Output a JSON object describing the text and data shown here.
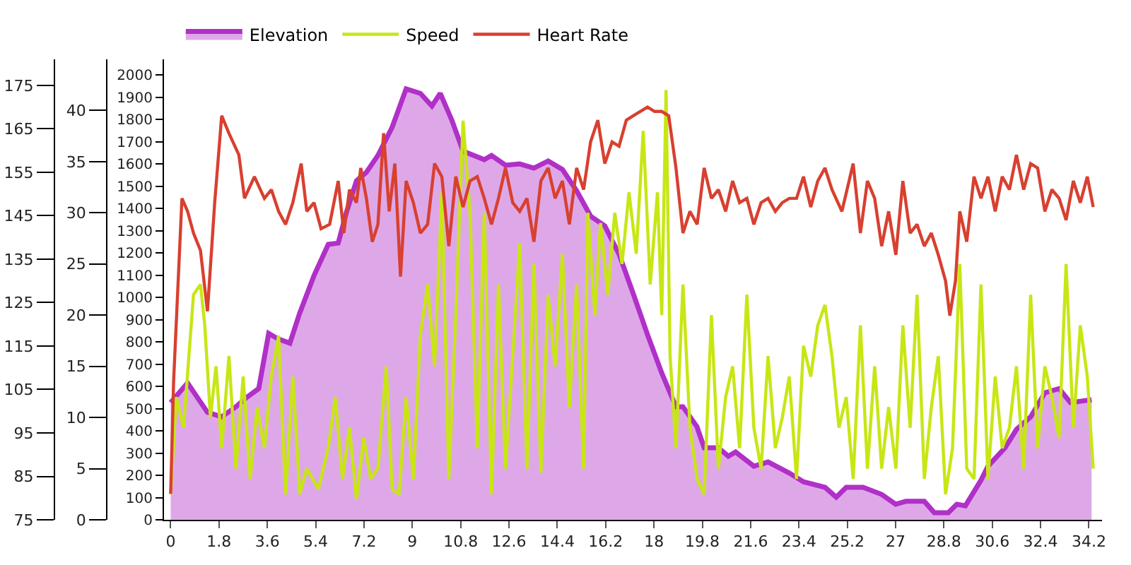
{
  "chart_data": {
    "type": "line",
    "legend": "top",
    "xlim": [
      -0.3,
      34.7
    ],
    "xticks": [
      0,
      1.8,
      3.6,
      5.4,
      7.2,
      9,
      10.8,
      12.6,
      14.4,
      16.2,
      18,
      19.8,
      21.6,
      23.4,
      25.2,
      27,
      28.8,
      30.6,
      32.4,
      34.2
    ],
    "ylim": [
      0,
      2070
    ],
    "yticks": [
      0,
      100,
      200,
      300,
      400,
      500,
      600,
      700,
      800,
      900,
      1000,
      1100,
      1200,
      1300,
      1400,
      1500,
      1600,
      1700,
      1800,
      1900,
      2000
    ],
    "y2lim": [
      0,
      45
    ],
    "y2ticks": [
      0,
      5,
      10,
      15,
      20,
      25,
      30,
      35,
      40
    ],
    "y3lim": [
      75,
      181
    ],
    "y3ticks": [
      75,
      85,
      95,
      105,
      115,
      125,
      135,
      145,
      155,
      165,
      175
    ],
    "series": [
      {
        "name": "Elevation",
        "type": "area",
        "color": "#b030c8",
        "x": [
          0,
          0.63,
          1.37,
          1.9,
          2.43,
          2.85,
          3.28,
          3.65,
          4.0,
          4.44,
          4.8,
          5.34,
          5.87,
          6.24,
          6.55,
          6.92,
          7.29,
          7.72,
          8.25,
          8.77,
          9.3,
          9.73,
          10.04,
          10.47,
          10.89,
          11.68,
          11.95,
          12.47,
          13.0,
          13.53,
          14.06,
          14.59,
          15.12,
          15.64,
          16.17,
          16.7,
          17.23,
          17.76,
          18.29,
          18.82,
          19.08,
          19.6,
          19.87,
          20.4,
          20.77,
          21.04,
          21.72,
          22.25,
          23.04,
          23.57,
          24.37,
          24.79,
          25.16,
          25.79,
          26.48,
          27.0,
          27.38,
          28.07,
          28.44,
          28.96,
          29.28,
          29.6,
          30.18,
          30.44,
          31.08,
          31.5,
          32.03,
          32.56,
          33.09,
          33.51,
          33.88,
          34.3
        ],
        "values": [
          527,
          615,
          483,
          463,
          508,
          552,
          590,
          838,
          813,
          794,
          927,
          1098,
          1238,
          1244,
          1384,
          1524,
          1562,
          1638,
          1765,
          1937,
          1917,
          1860,
          1917,
          1797,
          1657,
          1619,
          1638,
          1594,
          1600,
          1581,
          1613,
          1575,
          1479,
          1365,
          1321,
          1194,
          1016,
          832,
          660,
          508,
          508,
          419,
          324,
          324,
          286,
          305,
          241,
          260,
          210,
          171,
          146,
          102,
          146,
          146,
          114,
          70,
          83,
          83,
          32,
          32,
          70,
          63,
          178,
          241,
          324,
          406,
          463,
          571,
          590,
          527,
          533,
          540
        ]
      },
      {
        "name": "Speed",
        "color": "#c8e614",
        "axis": "y2",
        "x": [
          0,
          0.21,
          0.48,
          0.85,
          1.11,
          1.27,
          1.48,
          1.69,
          1.9,
          2.17,
          2.43,
          2.7,
          2.96,
          3.22,
          3.49,
          3.75,
          4.02,
          4.28,
          4.55,
          4.81,
          5.07,
          5.5,
          5.87,
          6.13,
          6.4,
          6.66,
          6.92,
          7.19,
          7.45,
          7.72,
          8.03,
          8.25,
          8.51,
          8.77,
          9.04,
          9.3,
          9.57,
          9.83,
          10.1,
          10.36,
          10.62,
          10.89,
          11.15,
          11.42,
          11.68,
          11.95,
          12.21,
          12.47,
          12.74,
          13.0,
          13.27,
          13.53,
          13.79,
          14.06,
          14.32,
          14.59,
          14.85,
          15.12,
          15.38,
          15.54,
          15.8,
          16.01,
          16.28,
          16.54,
          16.81,
          17.07,
          17.34,
          17.6,
          17.86,
          18.13,
          18.29,
          18.45,
          18.6,
          18.82,
          19.08,
          19.34,
          19.61,
          19.87,
          20.14,
          20.4,
          20.67,
          20.93,
          21.19,
          21.46,
          21.72,
          21.99,
          22.25,
          22.52,
          22.78,
          23.04,
          23.31,
          23.57,
          23.84,
          24.1,
          24.37,
          24.63,
          24.89,
          25.16,
          25.42,
          25.69,
          25.95,
          26.22,
          26.48,
          26.74,
          27.01,
          27.27,
          27.54,
          27.8,
          28.07,
          28.33,
          28.59,
          28.86,
          29.12,
          29.39,
          29.65,
          29.92,
          30.18,
          30.44,
          30.71,
          30.97,
          31.24,
          31.5,
          31.77,
          32.03,
          32.29,
          32.56,
          32.82,
          33.09,
          33.35,
          33.62,
          33.88,
          34.14,
          34.36
        ],
        "values": [
          2.5,
          12,
          9,
          22,
          23,
          19,
          10,
          15,
          7,
          16,
          5,
          14,
          4,
          11,
          7,
          14,
          18,
          2.5,
          14,
          2.5,
          5,
          3,
          7,
          12,
          4,
          9,
          2,
          8,
          4,
          5,
          15,
          3,
          2.5,
          12,
          4,
          18,
          23,
          15,
          32,
          4,
          20,
          39,
          30,
          7,
          30,
          2.5,
          23,
          5,
          16,
          27,
          5,
          25,
          4.6,
          22,
          15,
          26,
          11,
          23,
          5,
          30,
          20,
          29,
          22,
          30,
          25,
          32,
          26,
          38,
          23,
          32,
          20,
          42,
          16,
          7,
          23,
          9,
          4,
          2.5,
          20,
          5,
          12,
          15,
          7,
          22,
          9,
          5,
          16,
          7,
          10,
          14,
          4,
          17,
          14,
          19,
          21,
          16,
          9,
          12,
          4,
          19,
          5,
          15,
          5,
          11,
          5,
          19,
          9,
          22,
          4,
          11,
          16,
          2.5,
          7,
          25,
          5,
          4,
          23,
          4,
          14,
          7,
          9,
          15,
          5,
          22,
          7,
          15,
          12,
          8,
          25,
          9,
          19,
          14,
          5
        ]
      },
      {
        "name": "Heart Rate",
        "color": "#d84030",
        "axis": "y3",
        "x": [
          0,
          0.11,
          0.42,
          0.63,
          0.85,
          1.11,
          1.37,
          1.64,
          1.9,
          2.17,
          2.54,
          2.75,
          3.12,
          3.49,
          3.75,
          4.02,
          4.28,
          4.55,
          4.86,
          5.07,
          5.34,
          5.6,
          5.92,
          6.24,
          6.45,
          6.66,
          6.92,
          7.08,
          7.29,
          7.51,
          7.72,
          7.93,
          8.14,
          8.35,
          8.56,
          8.77,
          9.04,
          9.3,
          9.57,
          9.83,
          10.1,
          10.36,
          10.62,
          10.89,
          11.15,
          11.42,
          11.68,
          11.95,
          12.21,
          12.47,
          12.74,
          13.0,
          13.27,
          13.53,
          13.79,
          14.06,
          14.32,
          14.59,
          14.85,
          15.12,
          15.38,
          15.64,
          15.91,
          16.17,
          16.44,
          16.7,
          16.97,
          17.23,
          17.49,
          17.76,
          18.02,
          18.29,
          18.55,
          18.82,
          19.08,
          19.34,
          19.61,
          19.87,
          20.14,
          20.4,
          20.67,
          20.93,
          21.19,
          21.46,
          21.72,
          21.99,
          22.25,
          22.52,
          22.78,
          23.04,
          23.31,
          23.57,
          23.84,
          24.1,
          24.37,
          24.63,
          25.0,
          25.42,
          25.69,
          25.95,
          26.22,
          26.48,
          26.74,
          27.01,
          27.27,
          27.54,
          27.8,
          28.07,
          28.33,
          28.59,
          28.86,
          29.02,
          29.23,
          29.39,
          29.65,
          29.92,
          30.18,
          30.44,
          30.71,
          30.97,
          31.24,
          31.5,
          31.77,
          32.03,
          32.29,
          32.56,
          32.82,
          33.09,
          33.35,
          33.62,
          33.88,
          34.14,
          34.36
        ],
        "values": [
          81,
          107,
          149,
          146,
          141,
          137,
          123,
          148,
          168,
          164,
          159,
          149,
          154,
          149,
          151,
          146,
          143,
          148,
          157,
          146,
          148,
          142,
          143,
          153,
          141,
          151,
          148,
          156,
          149,
          139,
          143,
          164,
          146,
          157,
          131,
          153,
          148,
          141,
          143,
          157,
          154,
          138,
          154,
          147,
          153,
          154,
          149,
          143,
          149,
          156,
          148,
          146,
          149,
          139,
          153,
          156,
          149,
          153,
          143,
          156,
          151,
          162,
          167,
          157,
          162,
          161,
          167,
          168,
          169,
          170,
          169,
          169,
          168,
          156,
          141,
          146,
          143,
          156,
          149,
          151,
          146,
          153,
          148,
          149,
          143,
          148,
          149,
          146,
          148,
          149,
          149,
          154,
          147,
          153,
          156,
          151,
          146,
          157,
          141,
          153,
          149,
          138,
          146,
          136,
          153,
          141,
          143,
          138,
          141,
          136,
          130,
          122,
          130,
          146,
          139,
          154,
          149,
          154,
          146,
          154,
          151,
          159,
          151,
          157,
          156,
          146,
          151,
          149,
          144,
          153,
          148,
          154,
          147
        ]
      }
    ]
  }
}
